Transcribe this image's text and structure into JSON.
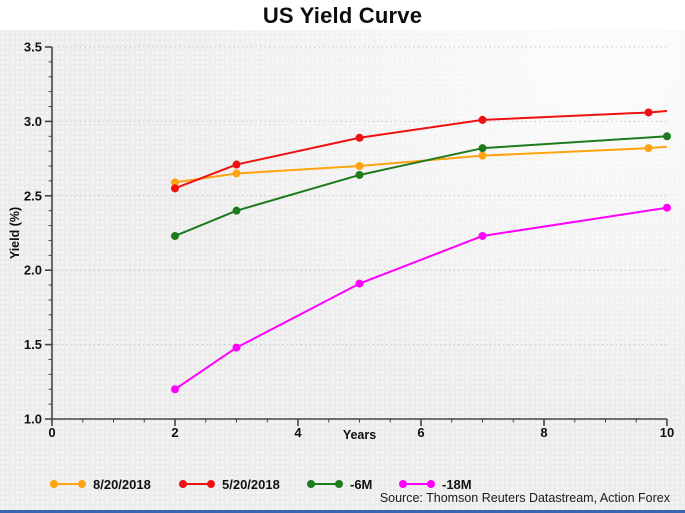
{
  "chart_data": {
    "type": "line",
    "title": "US Yield Curve",
    "xlabel": "Years",
    "ylabel": "Yield (%)",
    "xlim": [
      0,
      10
    ],
    "ylim": [
      1.0,
      3.5
    ],
    "x_major_ticks": [
      0,
      2,
      4,
      6,
      8,
      10
    ],
    "x_minor_step": 0.5,
    "y_major_ticks": [
      1.0,
      1.5,
      2.0,
      2.5,
      3.0,
      3.5
    ],
    "y_minor_step": 0.1,
    "grid": "horizontal dotted lines at major y ticks",
    "legend_position": "bottom",
    "series": [
      {
        "name": "8/20/2018",
        "color": "#FFA30F",
        "x": [
          2,
          3,
          5,
          7,
          9.7
        ],
        "values": [
          2.59,
          2.65,
          2.7,
          2.77,
          2.82
        ],
        "line_end": {
          "x": 10,
          "y": 2.83
        }
      },
      {
        "name": "5/20/2018",
        "color": "#EE1111",
        "x": [
          2,
          3,
          5,
          7,
          9.7
        ],
        "values": [
          2.55,
          2.71,
          2.89,
          3.01,
          3.06
        ],
        "line_end": {
          "x": 10,
          "y": 3.07
        }
      },
      {
        "name": "-6M",
        "color": "#1D7A1D",
        "x": [
          2,
          3,
          5,
          7,
          10
        ],
        "values": [
          2.23,
          2.4,
          2.64,
          2.82,
          2.9
        ]
      },
      {
        "name": "-18M",
        "color": "#FF00FF",
        "x": [
          2,
          3,
          5,
          7,
          10
        ],
        "values": [
          1.2,
          1.48,
          1.91,
          2.23,
          2.42
        ]
      }
    ],
    "source": "Source: Thomson Reuters Datastream, Action Forex"
  },
  "colors": {
    "background": "#ECECEC",
    "title_strip": "#FFFFFF",
    "axis": "#444444",
    "gridline": "#C8C8C8",
    "text": "#111111",
    "bottom_bar": "#3A66B0"
  }
}
